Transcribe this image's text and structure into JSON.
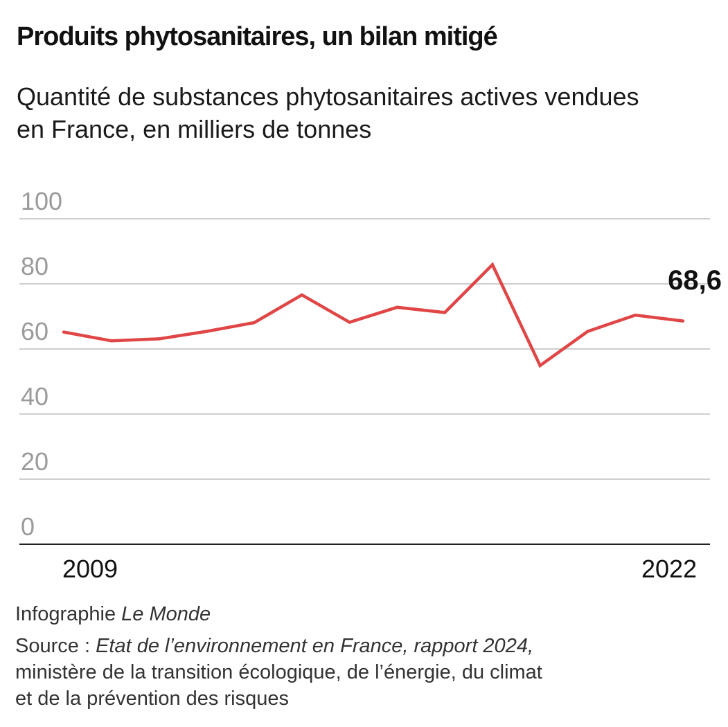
{
  "title": "Produits phytosanitaires, un bilan mitigé",
  "subtitle": "Quantité de substances phytosanitaires actives vendues en France, en milliers de tonnes",
  "footer": {
    "credit_prefix": "Infographie ",
    "credit_name": "Le Monde",
    "source_prefix": "Source : ",
    "source_title": "Etat de l’environnement en France, rapport 2024,",
    "source_line2": "ministère de la transition écologique, de l’énergie, du climat",
    "source_line3": "et de la prévention des risques"
  },
  "colors": {
    "line": "#e04646",
    "grid": "#bdbdbd",
    "axis": "#222222",
    "tick_label": "#9b9b9b",
    "text": "#111111"
  },
  "chart_data": {
    "type": "line",
    "title": "Produits phytosanitaires, un bilan mitigé",
    "subtitle": "Quantité de substances phytosanitaires actives vendues en France, en milliers de tonnes",
    "xlabel": "",
    "ylabel": "",
    "x": [
      2009,
      2010,
      2011,
      2012,
      2013,
      2014,
      2015,
      2016,
      2017,
      2018,
      2019,
      2020,
      2021,
      2022
    ],
    "x_tick_labels": [
      "2009",
      "2022"
    ],
    "ylim": [
      0,
      100
    ],
    "y_ticks": [
      0,
      20,
      40,
      60,
      80,
      100
    ],
    "grid": true,
    "series": [
      {
        "values": [
          65.2,
          62.5,
          63.1,
          65.4,
          68.1,
          76.6,
          68.2,
          72.8,
          71.2,
          85.9,
          54.9,
          65.4,
          70.4,
          68.6
        ]
      }
    ],
    "annotations": [
      {
        "x": 2022,
        "text": "68,6"
      }
    ]
  }
}
